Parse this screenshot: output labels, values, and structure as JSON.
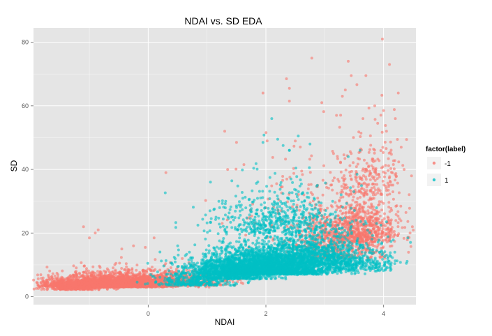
{
  "chart_data": {
    "type": "scatter",
    "title": "NDAI vs. SD EDA",
    "xlabel": "NDAI",
    "ylabel": "SD",
    "xlim": [
      -1.95,
      4.55
    ],
    "ylim": [
      -2.5,
      84.5
    ],
    "x_ticks": [
      0,
      2,
      4
    ],
    "y_ticks": [
      0,
      20,
      40,
      60,
      80
    ],
    "grid": true,
    "panel_background": "#e5e5e5",
    "grid_color": "#ffffff",
    "legend": {
      "title": "factor(label)",
      "placement": "right",
      "entries": [
        "-1",
        "1"
      ]
    },
    "series": [
      {
        "name": "-1",
        "color": "#f8766d",
        "clusters": [
          {
            "cx": -0.6,
            "cy": 3.0,
            "sx": 0.55,
            "sy": 2.2,
            "n": 2600,
            "ymin": 0.3
          },
          {
            "cx": 0.3,
            "cy": 3.5,
            "sx": 0.5,
            "sy": 2.6,
            "n": 700,
            "ymin": 0.3
          },
          {
            "cx": -1.2,
            "cy": 2.2,
            "sx": 0.25,
            "sy": 1.8,
            "n": 400,
            "ymin": 0.3
          },
          {
            "cx": 3.6,
            "cy": 17,
            "sx": 0.35,
            "sy": 9,
            "n": 700,
            "ymin": 2
          },
          {
            "cx": 3.2,
            "cy": 12,
            "sx": 0.45,
            "sy": 8,
            "n": 500,
            "ymin": 2
          },
          {
            "cx": 3.8,
            "cy": 32,
            "sx": 0.3,
            "sy": 12,
            "n": 200,
            "ymin": 2
          },
          {
            "cx": 2.7,
            "cy": 22,
            "sx": 0.6,
            "sy": 14,
            "n": 120,
            "ymin": 2
          }
        ],
        "points": [
          [
            3.98,
            81.0
          ],
          [
            2.78,
            75.0
          ],
          [
            4.1,
            73.0
          ],
          [
            3.4,
            74.0
          ],
          [
            2.35,
            68.5
          ],
          [
            3.45,
            69.5
          ],
          [
            3.7,
            69.5
          ],
          [
            3.35,
            65.0
          ],
          [
            2.4,
            65.5
          ],
          [
            1.95,
            64.0
          ],
          [
            2.4,
            61.5
          ],
          [
            4.25,
            64.0
          ],
          [
            2.95,
            61.0
          ],
          [
            3.85,
            60.0
          ],
          [
            4.0,
            58.5
          ],
          [
            4.2,
            56.0
          ],
          [
            3.2,
            57.0
          ],
          [
            3.65,
            56.0
          ],
          [
            4.05,
            52.0
          ],
          [
            3.9,
            54.5
          ],
          [
            0.3,
            39.0
          ],
          [
            -0.85,
            21.0
          ],
          [
            -0.9,
            20.0
          ],
          [
            -1.1,
            22.0
          ],
          [
            -1.0,
            18.5
          ],
          [
            -0.25,
            16.0
          ],
          [
            -0.45,
            15.0
          ],
          [
            -0.05,
            15.5
          ],
          [
            0.1,
            18.5
          ],
          [
            1.3,
            52.0
          ],
          [
            1.5,
            48.5
          ],
          [
            4.3,
            47.0
          ],
          [
            4.35,
            40.0
          ],
          [
            4.45,
            20.0
          ],
          [
            1.35,
            40.0
          ]
        ]
      },
      {
        "name": "1",
        "color": "#00bfc4",
        "clusters": [
          {
            "cx": 2.0,
            "cy": 7.0,
            "sx": 0.55,
            "sy": 4.5,
            "n": 2800,
            "ymin": 0.8
          },
          {
            "cx": 1.4,
            "cy": 5.5,
            "sx": 0.4,
            "sy": 3.5,
            "n": 700,
            "ymin": 0.8
          },
          {
            "cx": 2.7,
            "cy": 10.0,
            "sx": 0.5,
            "sy": 6.5,
            "n": 900,
            "ymin": 0.8
          },
          {
            "cx": 2.2,
            "cy": 20.0,
            "sx": 0.6,
            "sy": 9,
            "n": 500,
            "ymin": 0.8
          },
          {
            "cx": 3.5,
            "cy": 8.0,
            "sx": 0.4,
            "sy": 6,
            "n": 350,
            "ymin": 0.8
          },
          {
            "cx": 0.8,
            "cy": 3.5,
            "sx": 0.35,
            "sy": 2.5,
            "n": 300,
            "ymin": 0.8
          }
        ],
        "points": [
          [
            2.1,
            56.0
          ],
          [
            2.2,
            49.5
          ],
          [
            1.95,
            48.5
          ],
          [
            2.55,
            50.5
          ],
          [
            2.75,
            48.0
          ],
          [
            3.6,
            46.0
          ],
          [
            3.4,
            44.0
          ],
          [
            2.4,
            46.0
          ],
          [
            1.2,
            30.0
          ],
          [
            1.05,
            27.0
          ],
          [
            0.5,
            16.0
          ],
          [
            0.7,
            14.0
          ]
        ]
      }
    ]
  }
}
